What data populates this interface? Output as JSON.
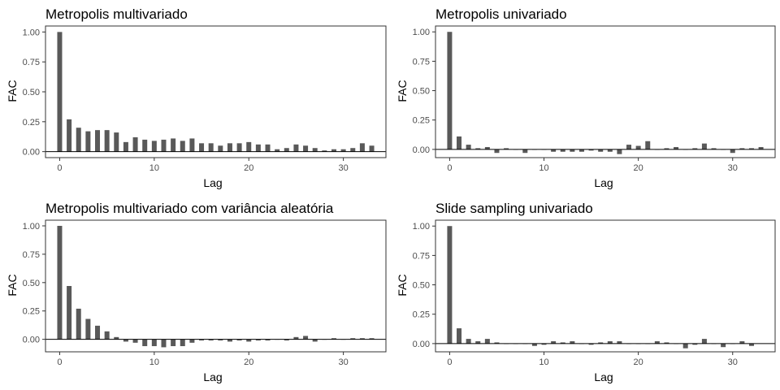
{
  "colors": {
    "bar": "#595959",
    "frame": "#333333",
    "zero_line": "#000000",
    "tick_text": "#4d4d4d"
  },
  "chart_data": [
    {
      "type": "bar",
      "title": "Metropolis multivariado",
      "xlabel": "Lag",
      "ylabel": "FAC",
      "xlim": [
        -1.5,
        34.5
      ],
      "ylim": [
        -0.05,
        1.05
      ],
      "xticks": [
        0,
        10,
        20,
        30
      ],
      "yticks": [
        0.0,
        0.25,
        0.5,
        0.75,
        1.0
      ],
      "ytick_labels": [
        "0.00",
        "0.25",
        "0.50",
        "0.75",
        "1.00"
      ],
      "xtick_labels": [
        "0",
        "10",
        "20",
        "30"
      ],
      "grid": false,
      "lags": [
        0,
        1,
        2,
        3,
        4,
        5,
        6,
        7,
        8,
        9,
        10,
        11,
        12,
        13,
        14,
        15,
        16,
        17,
        18,
        19,
        20,
        21,
        22,
        23,
        24,
        25,
        26,
        27,
        28,
        29,
        30,
        31,
        32,
        33
      ],
      "values": [
        1.0,
        0.27,
        0.2,
        0.17,
        0.18,
        0.18,
        0.16,
        0.08,
        0.12,
        0.1,
        0.09,
        0.1,
        0.11,
        0.09,
        0.11,
        0.07,
        0.07,
        0.05,
        0.07,
        0.07,
        0.08,
        0.06,
        0.06,
        0.02,
        0.03,
        0.06,
        0.05,
        0.03,
        0.01,
        0.02,
        0.02,
        0.03,
        0.07,
        0.05
      ]
    },
    {
      "type": "bar",
      "title": "Metropolis univariado",
      "xlabel": "Lag",
      "ylabel": "FAC",
      "xlim": [
        -1.5,
        34.5
      ],
      "ylim": [
        -0.07,
        1.05
      ],
      "xticks": [
        0,
        10,
        20,
        30
      ],
      "yticks": [
        0.0,
        0.25,
        0.5,
        0.75,
        1.0
      ],
      "ytick_labels": [
        "0.00",
        "0.25",
        "0.50",
        "0.75",
        "1.00"
      ],
      "xtick_labels": [
        "0",
        "10",
        "20",
        "30"
      ],
      "grid": false,
      "lags": [
        0,
        1,
        2,
        3,
        4,
        5,
        6,
        7,
        8,
        9,
        10,
        11,
        12,
        13,
        14,
        15,
        16,
        17,
        18,
        19,
        20,
        21,
        22,
        23,
        24,
        25,
        26,
        27,
        28,
        29,
        30,
        31,
        32,
        33
      ],
      "values": [
        1.0,
        0.11,
        0.04,
        0.01,
        0.02,
        -0.03,
        0.01,
        0.0,
        -0.03,
        0.0,
        0.0,
        -0.02,
        -0.02,
        -0.02,
        -0.02,
        -0.01,
        -0.02,
        -0.02,
        -0.04,
        0.04,
        0.03,
        0.07,
        0.0,
        0.01,
        0.02,
        0.0,
        0.01,
        0.05,
        0.01,
        0.0,
        -0.03,
        0.01,
        0.01,
        0.02
      ]
    },
    {
      "type": "bar",
      "title": "Metropolis multivariado com variância aleatória",
      "xlabel": "Lag",
      "ylabel": "FAC",
      "xlim": [
        -1.5,
        34.5
      ],
      "ylim": [
        -0.11,
        1.05
      ],
      "xticks": [
        0,
        10,
        20,
        30
      ],
      "yticks": [
        0.0,
        0.25,
        0.5,
        0.75,
        1.0
      ],
      "ytick_labels": [
        "0.00",
        "0.25",
        "0.50",
        "0.75",
        "1.00"
      ],
      "xtick_labels": [
        "0",
        "10",
        "20",
        "30"
      ],
      "grid": false,
      "lags": [
        0,
        1,
        2,
        3,
        4,
        5,
        6,
        7,
        8,
        9,
        10,
        11,
        12,
        13,
        14,
        15,
        16,
        17,
        18,
        19,
        20,
        21,
        22,
        23,
        24,
        25,
        26,
        27,
        28,
        29,
        30,
        31,
        32,
        33
      ],
      "values": [
        1.0,
        0.47,
        0.27,
        0.18,
        0.12,
        0.07,
        0.02,
        -0.02,
        -0.03,
        -0.06,
        -0.06,
        -0.07,
        -0.06,
        -0.06,
        -0.03,
        -0.01,
        -0.01,
        -0.01,
        -0.02,
        -0.01,
        -0.02,
        -0.01,
        -0.01,
        0.0,
        -0.01,
        0.02,
        0.03,
        -0.02,
        0.0,
        0.01,
        0.0,
        0.01,
        0.01,
        0.01
      ]
    },
    {
      "type": "bar",
      "title": "Slide sampling univariado",
      "xlabel": "Lag",
      "ylabel": "FAC",
      "xlim": [
        -1.5,
        34.5
      ],
      "ylim": [
        -0.07,
        1.05
      ],
      "xticks": [
        0,
        10,
        20,
        30
      ],
      "yticks": [
        0.0,
        0.25,
        0.5,
        0.75,
        1.0
      ],
      "ytick_labels": [
        "0.00",
        "0.25",
        "0.50",
        "0.75",
        "1.00"
      ],
      "xtick_labels": [
        "0",
        "10",
        "20",
        "30"
      ],
      "grid": false,
      "lags": [
        0,
        1,
        2,
        3,
        4,
        5,
        6,
        7,
        8,
        9,
        10,
        11,
        12,
        13,
        14,
        15,
        16,
        17,
        18,
        19,
        20,
        21,
        22,
        23,
        24,
        25,
        26,
        27,
        28,
        29,
        30,
        31,
        32
      ],
      "values": [
        1.0,
        0.13,
        0.04,
        0.02,
        0.04,
        0.01,
        0.0,
        0.0,
        0.0,
        -0.02,
        -0.01,
        0.02,
        0.01,
        0.02,
        0.0,
        -0.01,
        0.01,
        0.02,
        0.02,
        0.0,
        0.0,
        0.0,
        0.02,
        0.01,
        0.0,
        -0.04,
        -0.01,
        0.04,
        0.0,
        -0.03,
        0.0,
        0.02,
        -0.02
      ]
    }
  ]
}
